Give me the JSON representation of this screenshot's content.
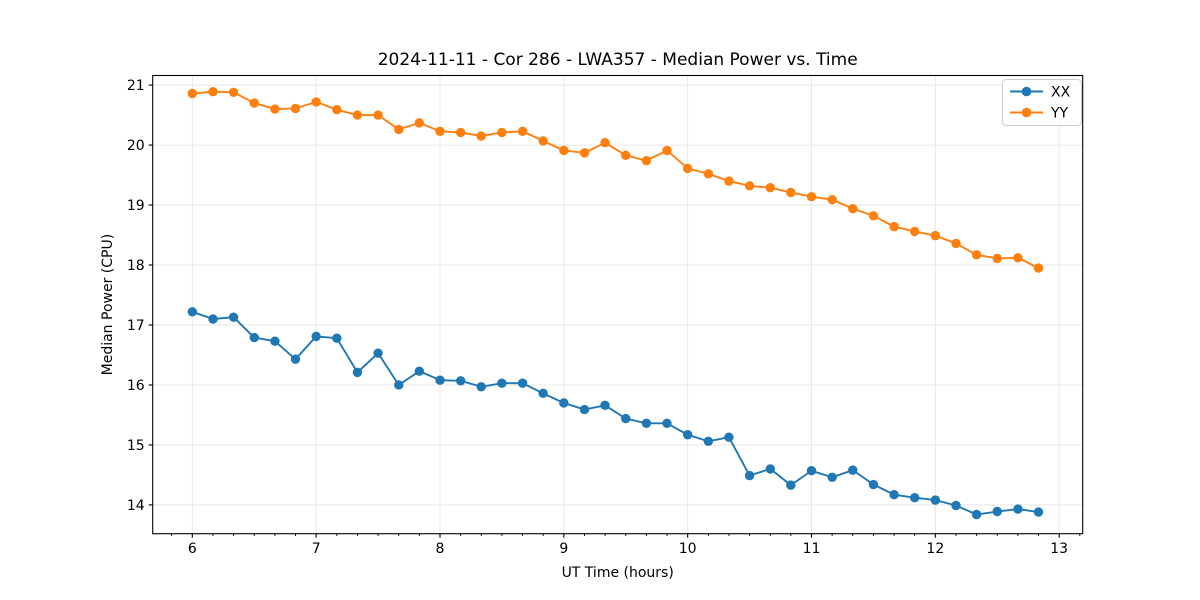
{
  "figure": {
    "title": "2024-11-11 - Cor 286 - LWA357 - Median Power vs. Time"
  },
  "chart_data": {
    "type": "line",
    "title": "2024-11-11 - Cor 286 - LWA357 - Median Power vs. Time",
    "xlabel": "UT Time (hours)",
    "ylabel": "Median Power (CPU)",
    "xlim": [
      5.68,
      13.19
    ],
    "ylim": [
      13.52,
      21.16
    ],
    "x_ticks": [
      6,
      7,
      8,
      9,
      10,
      11,
      12,
      13
    ],
    "y_ticks": [
      14,
      15,
      16,
      17,
      18,
      19,
      20,
      21
    ],
    "x_minor_ticks_per_unit": 6,
    "grid": true,
    "grid_color": "#e7e7e7",
    "legend_position": "upper right",
    "x": [
      6.0,
      6.167,
      6.333,
      6.5,
      6.667,
      6.833,
      7.0,
      7.167,
      7.333,
      7.5,
      7.667,
      7.833,
      8.0,
      8.167,
      8.333,
      8.5,
      8.667,
      8.833,
      9.0,
      9.167,
      9.333,
      9.5,
      9.667,
      9.833,
      10.0,
      10.167,
      10.333,
      10.5,
      10.667,
      10.833,
      11.0,
      11.167,
      11.333,
      11.5,
      11.667,
      11.833,
      12.0,
      12.167,
      12.333,
      12.5,
      12.667,
      12.833
    ],
    "series": [
      {
        "name": "XX",
        "color": "#1f77b4",
        "values": [
          17.22,
          17.1,
          17.13,
          16.79,
          16.73,
          16.43,
          16.81,
          16.78,
          16.21,
          16.53,
          16.0,
          16.23,
          16.08,
          16.07,
          15.97,
          16.03,
          16.03,
          15.86,
          15.7,
          15.59,
          15.66,
          15.44,
          15.36,
          15.36,
          15.17,
          15.06,
          15.13,
          14.49,
          14.6,
          14.33,
          14.57,
          14.46,
          14.58,
          14.34,
          14.17,
          14.12,
          14.08,
          13.99,
          13.84,
          13.89,
          13.93,
          13.88
        ]
      },
      {
        "name": "YY",
        "color": "#ff7f0e",
        "values": [
          20.86,
          20.89,
          20.88,
          20.7,
          20.6,
          20.61,
          20.72,
          20.59,
          20.5,
          20.5,
          20.26,
          20.37,
          20.23,
          20.21,
          20.15,
          20.21,
          20.23,
          20.07,
          19.91,
          19.87,
          20.04,
          19.83,
          19.74,
          19.91,
          19.61,
          19.52,
          19.4,
          19.32,
          19.29,
          19.21,
          19.14,
          19.09,
          18.94,
          18.82,
          18.64,
          18.56,
          18.49,
          18.36,
          18.17,
          18.11,
          18.12,
          17.95
        ]
      }
    ]
  }
}
